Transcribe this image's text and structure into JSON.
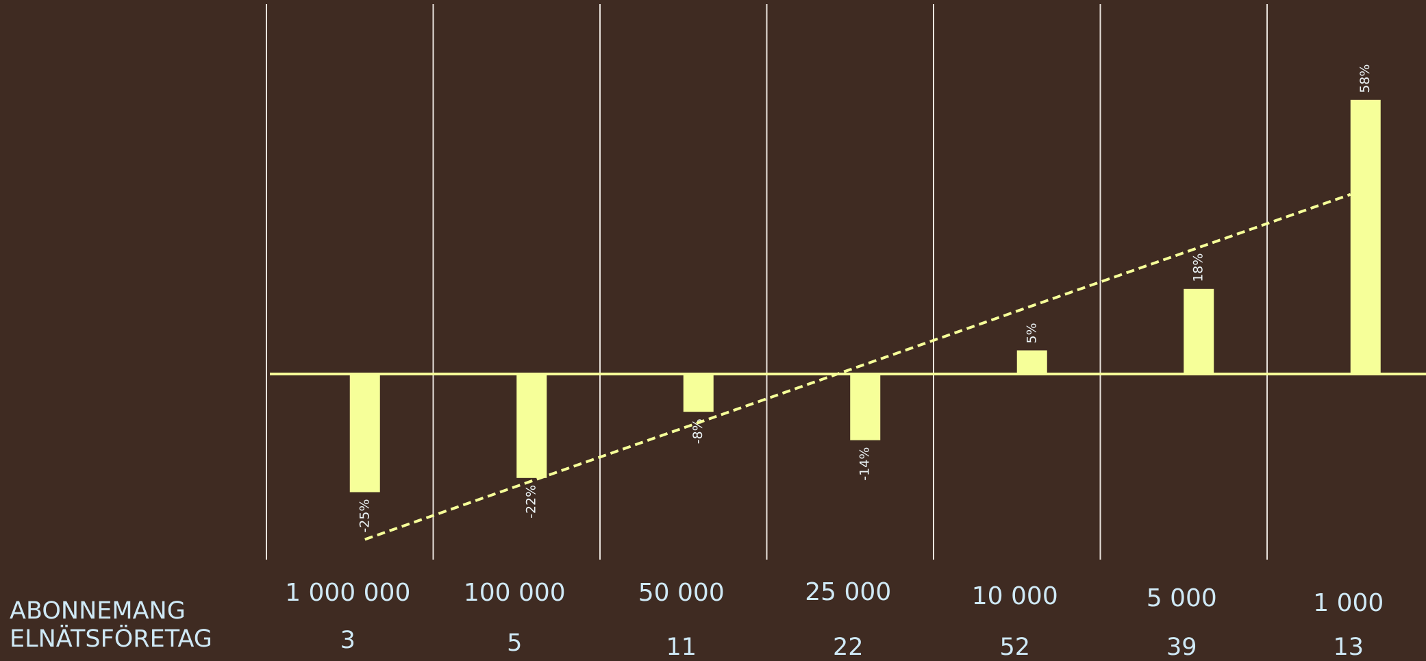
{
  "chart_data": {
    "type": "bar",
    "categories": [
      "1 000 000",
      "100 000",
      "50 000",
      "25 000",
      "10 000",
      "5 000",
      "1 000"
    ],
    "values": [
      -25,
      -22,
      -8,
      -14,
      5,
      18,
      58
    ],
    "value_labels": [
      "-25%",
      "-22%",
      "-8%",
      "-14%",
      "5%",
      "18%",
      "58%"
    ],
    "counts": [
      "3",
      "5",
      "11",
      "22",
      "52",
      "39",
      "13"
    ],
    "row_labels": {
      "categories": "ABONNEMANG",
      "counts": "ELNÄTSFÖRETAG"
    },
    "trendline": {
      "style": "dashed",
      "from": -35,
      "to": 38
    },
    "ylim": [
      -40,
      80
    ],
    "colors": {
      "background": "#3f2b22",
      "bar": "#f6ff99",
      "baseline": "#f6ff99",
      "trendline": "#f6ff99",
      "gridline": "#e8e2dc",
      "text": "#cfe9f6",
      "data_label": "#ecf4f7"
    }
  }
}
